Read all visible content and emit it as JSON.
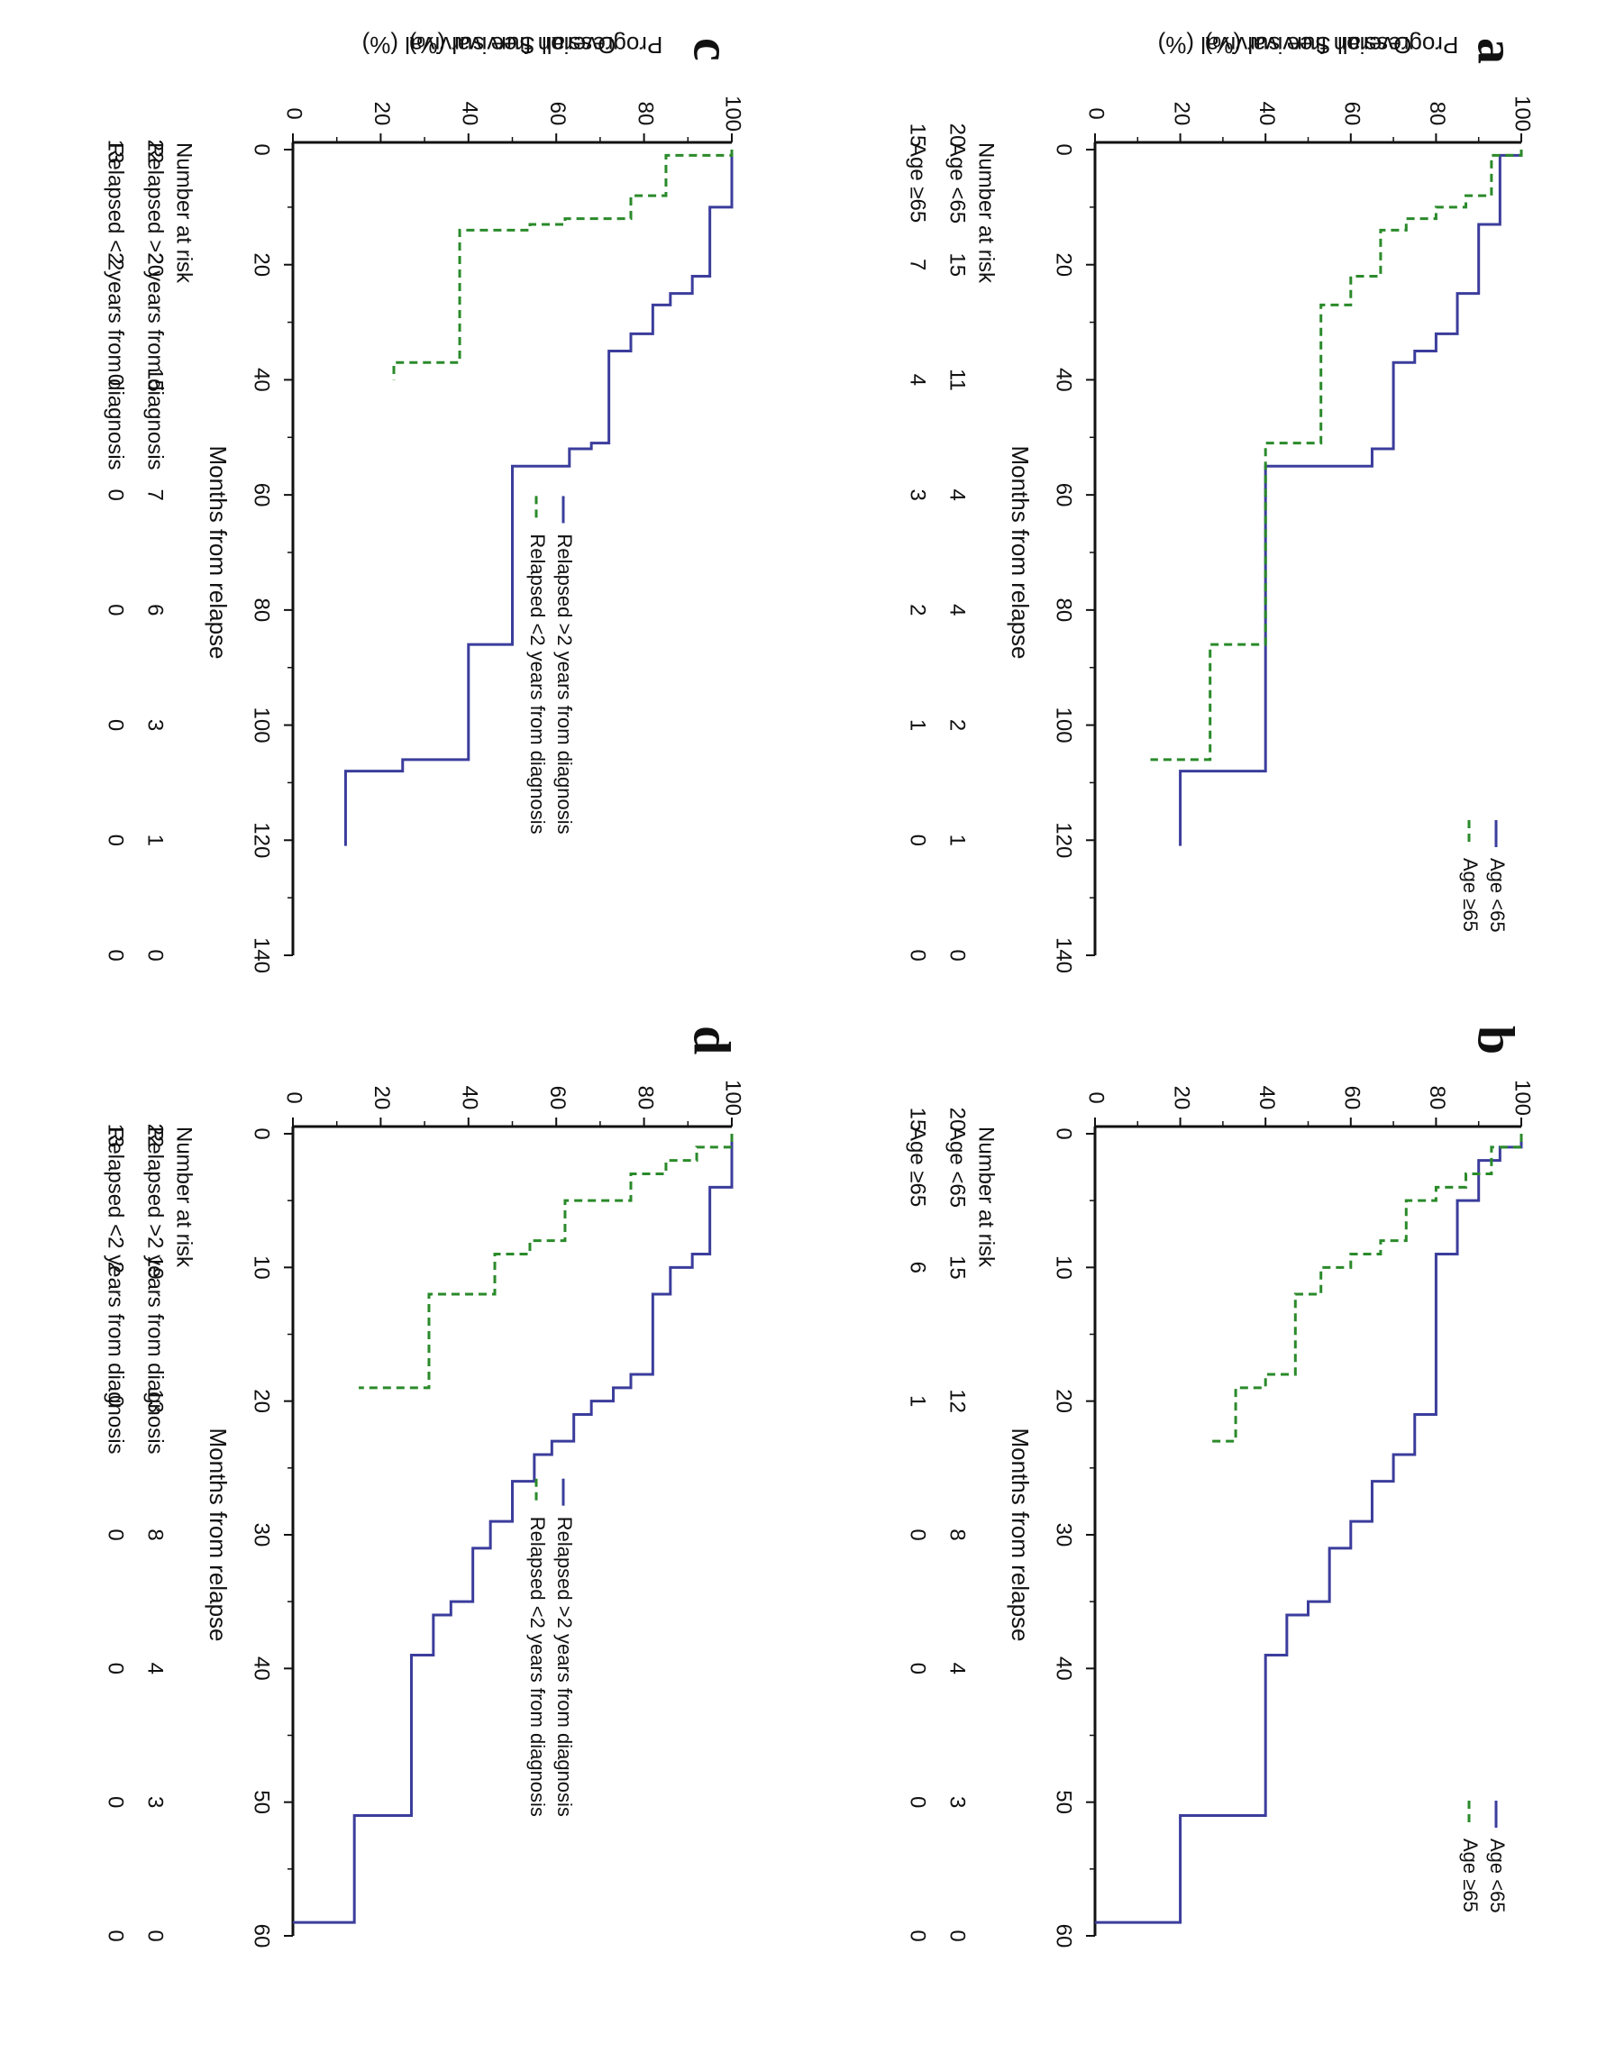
{
  "colors": {
    "solid": "#3b3d9c",
    "dashed": "#2a8a2a",
    "axis": "#111111"
  },
  "chart_data": [
    {
      "panel": "a",
      "type": "line",
      "step": true,
      "ylabel": "Overall Survival (%)",
      "xlabel": "Months from relapse",
      "xlim": [
        0,
        140
      ],
      "ylim": [
        0,
        100
      ],
      "xticks": [
        0,
        20,
        40,
        60,
        80,
        100,
        120,
        140
      ],
      "yticks": [
        0,
        20,
        40,
        60,
        80,
        100
      ],
      "legend_position": "top-right",
      "series": [
        {
          "name": "Age <65",
          "style": "solid",
          "x": [
            0,
            1,
            13,
            25,
            32,
            35,
            37,
            52,
            55,
            108,
            121
          ],
          "y": [
            100,
            95,
            90,
            85,
            80,
            75,
            70,
            65,
            40,
            20,
            20
          ]
        },
        {
          "name": "Age ≥65",
          "style": "dashed",
          "x": [
            0,
            1,
            8,
            10,
            12,
            14,
            22,
            27,
            51,
            86,
            106
          ],
          "y": [
            100,
            93,
            87,
            80,
            73,
            67,
            60,
            53,
            40,
            27,
            13
          ]
        }
      ],
      "risk_table": {
        "header": "Number at risk",
        "times": [
          0,
          20,
          40,
          60,
          80,
          100,
          120,
          140
        ],
        "rows": [
          {
            "label": "Age <65",
            "values": [
              "20",
              "15",
              "11",
              "4",
              "4",
              "2",
              "1",
              "0"
            ]
          },
          {
            "label": "Age ≥65",
            "values": [
              "15",
              "7",
              "4",
              "3",
              "2",
              "1",
              "0",
              "0"
            ]
          }
        ]
      }
    },
    {
      "panel": "b",
      "type": "line",
      "step": true,
      "ylabel": "Progression free survival (%)",
      "xlabel": "Months from relapse",
      "xlim": [
        0,
        60
      ],
      "ylim": [
        0,
        100
      ],
      "xticks": [
        0,
        10,
        20,
        30,
        40,
        50,
        60
      ],
      "yticks": [
        0,
        20,
        40,
        60,
        80,
        100
      ],
      "legend_position": "top-right",
      "series": [
        {
          "name": "Age <65",
          "style": "solid",
          "x": [
            0,
            1,
            2,
            5,
            9,
            20,
            21,
            24,
            26,
            29,
            31,
            35,
            36,
            39,
            51,
            59
          ],
          "y": [
            100,
            95,
            90,
            85,
            80,
            80,
            75,
            70,
            65,
            60,
            55,
            50,
            45,
            40,
            20,
            0
          ]
        },
        {
          "name": "Age ≥65",
          "style": "dashed",
          "x": [
            0,
            1,
            3,
            4,
            5,
            8,
            9,
            10,
            12,
            18,
            19,
            23
          ],
          "y": [
            100,
            93,
            87,
            80,
            73,
            67,
            60,
            53,
            47,
            40,
            33,
            27
          ]
        }
      ],
      "risk_table": {
        "header": "Number at risk",
        "times": [
          0,
          10,
          20,
          30,
          40,
          50,
          60
        ],
        "rows": [
          {
            "label": "Age <65",
            "values": [
              "20",
              "15",
              "12",
              "8",
              "4",
              "3",
              "0"
            ]
          },
          {
            "label": "Age ≥65",
            "values": [
              "15",
              "6",
              "1",
              "0",
              "0",
              "0",
              "0"
            ]
          }
        ]
      }
    },
    {
      "panel": "c",
      "type": "line",
      "step": true,
      "ylabel": "Overall Survival (%)",
      "xlabel": "Months from relapse",
      "xlim": [
        0,
        140
      ],
      "ylim": [
        0,
        100
      ],
      "xticks": [
        0,
        20,
        40,
        60,
        80,
        100,
        120,
        140
      ],
      "yticks": [
        0,
        20,
        40,
        60,
        80,
        100
      ],
      "legend_position": "middle",
      "series": [
        {
          "name": "Relapsed >2 years from diagnosis",
          "style": "solid",
          "x": [
            0,
            10,
            22,
            25,
            27,
            32,
            35,
            51,
            52,
            55,
            86,
            106,
            108,
            121
          ],
          "y": [
            100,
            95,
            91,
            86,
            82,
            77,
            72,
            68,
            63,
            50,
            40,
            25,
            12,
            12
          ]
        },
        {
          "name": "Relapsed <2 years from diagnosis",
          "style": "dashed",
          "x": [
            0,
            1,
            8,
            12,
            13,
            14,
            37,
            40
          ],
          "y": [
            100,
            85,
            77,
            62,
            54,
            38,
            23,
            23
          ]
        }
      ],
      "risk_table": {
        "header": "Number at risk",
        "times": [
          0,
          20,
          40,
          60,
          80,
          100,
          120,
          140
        ],
        "rows": [
          {
            "label": "Relapsed >2 years from diagnosis",
            "values": [
              "22",
              "20",
              "15",
              "7",
              "6",
              "3",
              "1",
              "0"
            ]
          },
          {
            "label": "Relapsed <2 years from diagnosis",
            "values": [
              "13",
              "2",
              "0",
              "0",
              "0",
              "0",
              "0",
              "0"
            ]
          }
        ]
      }
    },
    {
      "panel": "d",
      "type": "line",
      "step": true,
      "ylabel": "Progression free survival (%)",
      "xlabel": "Months from relapse",
      "xlim": [
        0,
        60
      ],
      "ylim": [
        0,
        100
      ],
      "xticks": [
        0,
        10,
        20,
        30,
        40,
        50,
        60
      ],
      "yticks": [
        0,
        20,
        40,
        60,
        80,
        100
      ],
      "legend_position": "middle",
      "series": [
        {
          "name": "Relapsed >2 years from diagnosis",
          "style": "solid",
          "x": [
            0,
            4,
            9,
            10,
            12,
            18,
            19,
            20,
            21,
            23,
            24,
            26,
            29,
            31,
            35,
            36,
            39,
            51,
            59
          ],
          "y": [
            100,
            95,
            91,
            86,
            82,
            77,
            73,
            68,
            64,
            59,
            55,
            50,
            45,
            41,
            36,
            32,
            27,
            14,
            0
          ]
        },
        {
          "name": "Relapsed <2 years from diagnosis",
          "style": "dashed",
          "x": [
            0,
            1,
            2,
            3,
            5,
            8,
            9,
            12,
            19
          ],
          "y": [
            100,
            92,
            85,
            77,
            62,
            54,
            46,
            31,
            15
          ]
        }
      ],
      "risk_table": {
        "header": "Number at risk",
        "times": [
          0,
          10,
          20,
          30,
          40,
          50,
          60
        ],
        "rows": [
          {
            "label": "Relapsed >2 years from diagnosis",
            "values": [
              "22",
              "19",
              "13",
              "8",
              "4",
              "3",
              "0"
            ]
          },
          {
            "label": "Relapsed <2 years from diagnosis",
            "values": [
              "13",
              "2",
              "0",
              "0",
              "0",
              "0",
              "0"
            ]
          }
        ]
      }
    }
  ]
}
